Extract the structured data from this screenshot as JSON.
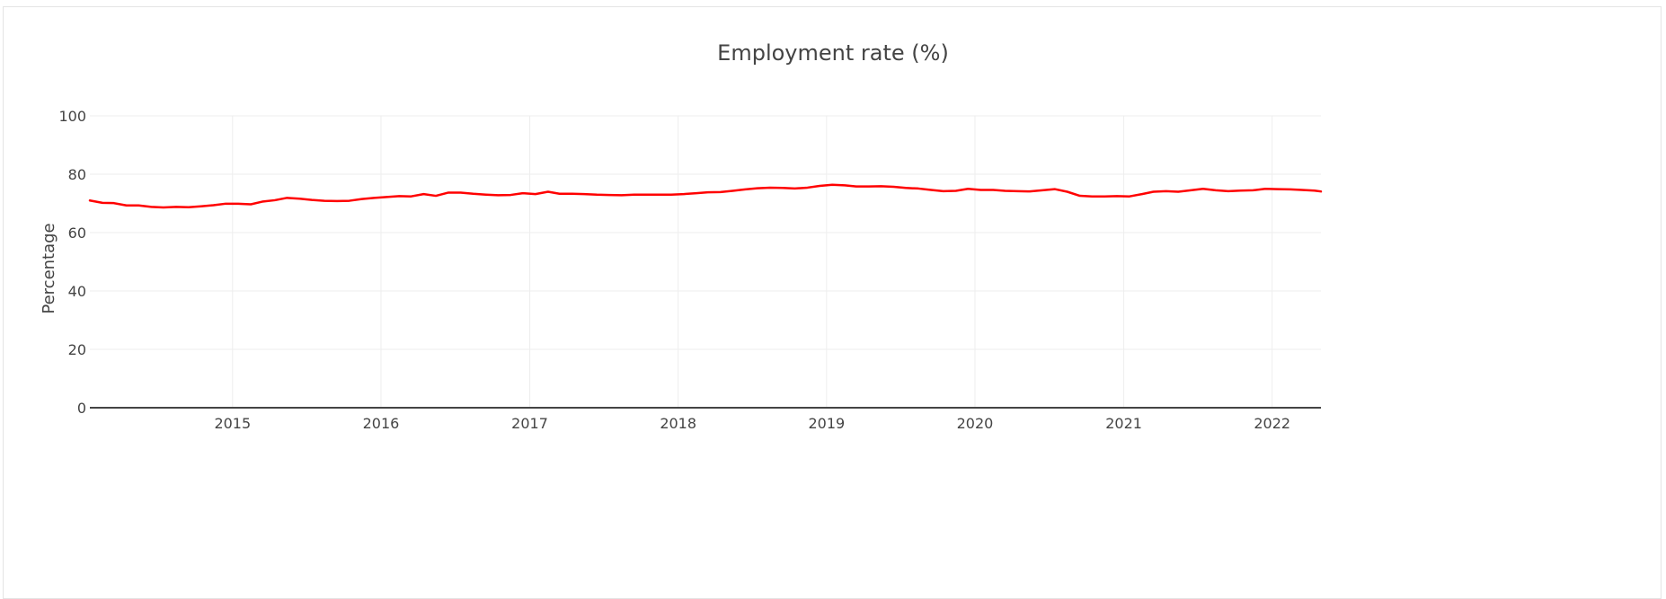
{
  "chart_data": {
    "type": "line",
    "title": "Employment rate (%)",
    "xlabel": "",
    "ylabel": "Percentage",
    "ylim": [
      0,
      100
    ],
    "yticks": [
      0,
      20,
      40,
      60,
      80,
      100
    ],
    "xlim": [
      "2014-01-15",
      "2022-05-01"
    ],
    "xticks": [
      "2015",
      "2016",
      "2017",
      "2018",
      "2019",
      "2020",
      "2021",
      "2022"
    ],
    "grid": true,
    "line_color": "#ff0000",
    "series": [
      {
        "x": [
          "2014-01-15",
          "2014-02-15",
          "2014-03-15",
          "2014-04-15",
          "2014-05-15",
          "2014-06-15",
          "2014-07-15",
          "2014-08-15",
          "2014-09-15",
          "2014-10-15",
          "2014-11-15",
          "2014-12-15",
          "2015-01-15",
          "2015-02-15",
          "2015-03-15",
          "2015-04-15",
          "2015-05-15",
          "2015-06-15",
          "2015-07-15",
          "2015-08-15",
          "2015-09-15",
          "2015-10-15",
          "2015-11-15",
          "2015-12-15",
          "2016-01-15",
          "2016-02-15",
          "2016-03-15",
          "2016-04-15",
          "2016-05-15",
          "2016-06-15",
          "2016-07-15",
          "2016-08-15",
          "2016-09-15",
          "2016-10-15",
          "2016-11-15",
          "2016-12-15",
          "2017-01-15",
          "2017-02-15",
          "2017-03-15",
          "2017-04-15",
          "2017-05-15",
          "2017-06-15",
          "2017-07-15",
          "2017-08-15",
          "2017-09-15",
          "2017-10-15",
          "2017-11-15",
          "2017-12-15",
          "2018-01-15",
          "2018-02-15",
          "2018-03-15",
          "2018-04-15",
          "2018-05-15",
          "2018-06-15",
          "2018-07-15",
          "2018-08-15",
          "2018-09-15",
          "2018-10-15",
          "2018-11-15",
          "2018-12-15",
          "2019-01-15",
          "2019-02-15",
          "2019-03-15",
          "2019-04-15",
          "2019-05-15",
          "2019-06-15",
          "2019-07-15",
          "2019-08-15",
          "2019-09-15",
          "2019-10-15",
          "2019-11-15",
          "2019-12-15",
          "2020-01-15",
          "2020-02-15",
          "2020-03-15",
          "2020-04-15",
          "2020-05-15",
          "2020-06-15",
          "2020-07-15",
          "2020-08-15",
          "2020-09-15",
          "2020-10-15",
          "2020-11-15",
          "2020-12-15",
          "2021-01-15",
          "2021-02-15",
          "2021-03-15",
          "2021-04-15",
          "2021-05-15",
          "2021-06-15",
          "2021-07-15",
          "2021-08-15",
          "2021-09-15",
          "2021-10-15",
          "2021-11-15",
          "2021-12-15",
          "2022-01-15",
          "2022-02-15",
          "2022-03-15",
          "2022-04-15",
          "2022-05-01"
        ],
        "values": [
          71.0,
          70.2,
          70.1,
          69.3,
          69.3,
          68.8,
          68.6,
          68.8,
          68.7,
          69.0,
          69.4,
          69.9,
          69.9,
          69.7,
          70.6,
          71.1,
          71.9,
          71.6,
          71.2,
          70.9,
          70.8,
          70.9,
          71.5,
          71.9,
          72.2,
          72.5,
          72.4,
          73.2,
          72.6,
          73.7,
          73.7,
          73.3,
          73.0,
          72.8,
          72.9,
          73.5,
          73.2,
          74.0,
          73.3,
          73.3,
          73.2,
          73.0,
          72.9,
          72.8,
          73.0,
          73.0,
          73.0,
          73.0,
          73.2,
          73.5,
          73.8,
          73.9,
          74.3,
          74.8,
          75.2,
          75.4,
          75.3,
          75.1,
          75.4,
          76.0,
          76.4,
          76.2,
          75.8,
          75.8,
          75.9,
          75.7,
          75.3,
          75.1,
          74.6,
          74.2,
          74.3,
          75.0,
          74.6,
          74.6,
          74.3,
          74.2,
          74.1,
          74.5,
          74.9,
          74.0,
          72.6,
          72.4,
          72.4,
          72.5,
          72.4,
          73.2,
          74.0,
          74.2,
          74.0,
          74.5,
          75.0,
          74.5,
          74.2,
          74.4,
          74.5,
          75.0,
          74.9,
          74.8,
          74.6,
          74.4,
          74.1
        ]
      }
    ]
  }
}
